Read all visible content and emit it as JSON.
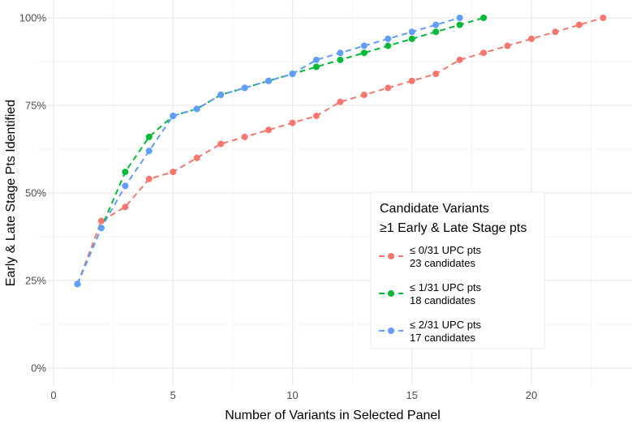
{
  "chart_data": {
    "type": "line",
    "title": "",
    "xlabel": "Number of Variants in Selected Panel",
    "ylabel": "Early & Late Stage Pts Identified",
    "xlim": [
      0,
      24
    ],
    "ylim": [
      0,
      100
    ],
    "x_ticks": [
      0,
      5,
      10,
      15,
      20
    ],
    "x_tick_labels": [
      "0",
      "5",
      "10",
      "15",
      "20"
    ],
    "y_ticks": [
      0,
      25,
      50,
      75,
      100
    ],
    "y_tick_labels": [
      "0%",
      "25%",
      "50%",
      "75%",
      "100%"
    ],
    "grid": true,
    "legend": {
      "title_line1": "Candidate Variants",
      "title_line2": "≥1 Early & Late Stage pts",
      "placement": "right"
    },
    "series": [
      {
        "name": "≤ 0/31 UPC pts",
        "subtitle": "23 candidates",
        "color": "#F8766D",
        "x": [
          1,
          2,
          3,
          4,
          5,
          6,
          7,
          8,
          9,
          10,
          11,
          12,
          13,
          14,
          15,
          16,
          17,
          18,
          19,
          20,
          21,
          22,
          23
        ],
        "y": [
          24,
          42,
          46,
          54,
          56,
          60,
          64,
          66,
          68,
          70,
          72,
          76,
          78,
          80,
          82,
          84,
          88,
          90,
          92,
          94,
          96,
          98,
          100
        ]
      },
      {
        "name": "≤ 1/31 UPC pts",
        "subtitle": "18 candidates",
        "color": "#00BA38",
        "x": [
          1,
          2,
          3,
          4,
          5,
          6,
          7,
          8,
          9,
          10,
          11,
          12,
          13,
          14,
          15,
          16,
          17,
          18
        ],
        "y": [
          24,
          40,
          56,
          66,
          72,
          74,
          78,
          80,
          82,
          84,
          86,
          88,
          90,
          92,
          94,
          96,
          98,
          100
        ]
      },
      {
        "name": "≤ 2/31 UPC pts",
        "subtitle": "17 candidates",
        "color": "#619CFF",
        "x": [
          1,
          2,
          3,
          4,
          5,
          6,
          7,
          8,
          9,
          10,
          11,
          12,
          13,
          14,
          15,
          16,
          17
        ],
        "y": [
          24,
          40,
          52,
          62,
          72,
          74,
          78,
          80,
          82,
          84,
          88,
          90,
          92,
          94,
          96,
          98,
          100
        ]
      }
    ]
  }
}
